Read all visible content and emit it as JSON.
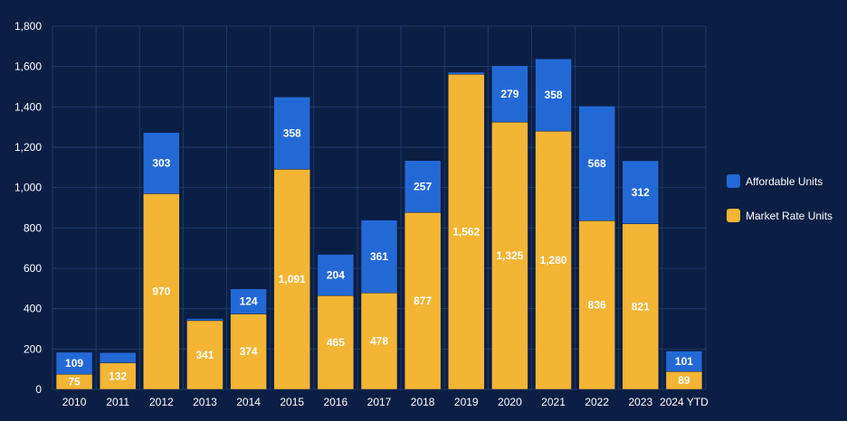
{
  "chart_data": {
    "type": "bar",
    "stacked": true,
    "categories": [
      "2010",
      "2011",
      "2012",
      "2013",
      "2014",
      "2015",
      "2016",
      "2017",
      "2018",
      "2019",
      "2020",
      "2021",
      "2022",
      "2023",
      "2024 YTD"
    ],
    "series": [
      {
        "name": "Market Rate Units",
        "color": "#f3b533",
        "values": [
          75,
          132,
          970,
          341,
          374,
          1091,
          465,
          478,
          877,
          1562,
          1325,
          1280,
          836,
          821,
          89
        ],
        "labels": [
          "75",
          "132",
          "970",
          "341",
          "374",
          "1,091",
          "465",
          "478",
          "877",
          "1,562",
          "1,325",
          "1,280",
          "836",
          "821",
          "89"
        ]
      },
      {
        "name": "Affordable Units",
        "color": "#2369d6",
        "values": [
          109,
          50,
          303,
          10,
          124,
          358,
          204,
          361,
          257,
          10,
          279,
          358,
          568,
          312,
          101
        ],
        "labels": [
          "109",
          "",
          "303",
          "",
          "124",
          "358",
          "204",
          "361",
          "257",
          "",
          "279",
          "358",
          "568",
          "312",
          "101"
        ]
      }
    ],
    "legend_order": [
      "Affordable Units",
      "Market Rate Units"
    ],
    "yticks": [
      0,
      200,
      400,
      600,
      800,
      1000,
      1200,
      1400,
      1600,
      1800
    ],
    "ytick_labels": [
      "0",
      "200",
      "400",
      "600",
      "800",
      "1,000",
      "1,200",
      "1,400",
      "1,600",
      "1,800"
    ],
    "ylim": [
      0,
      1800
    ],
    "grid": true,
    "legend_position": "right",
    "title": "",
    "xlabel": "",
    "ylabel": "",
    "colors": {
      "background": "#0b1f45",
      "grid": "#1f3a68",
      "text": "#ffffff"
    }
  }
}
